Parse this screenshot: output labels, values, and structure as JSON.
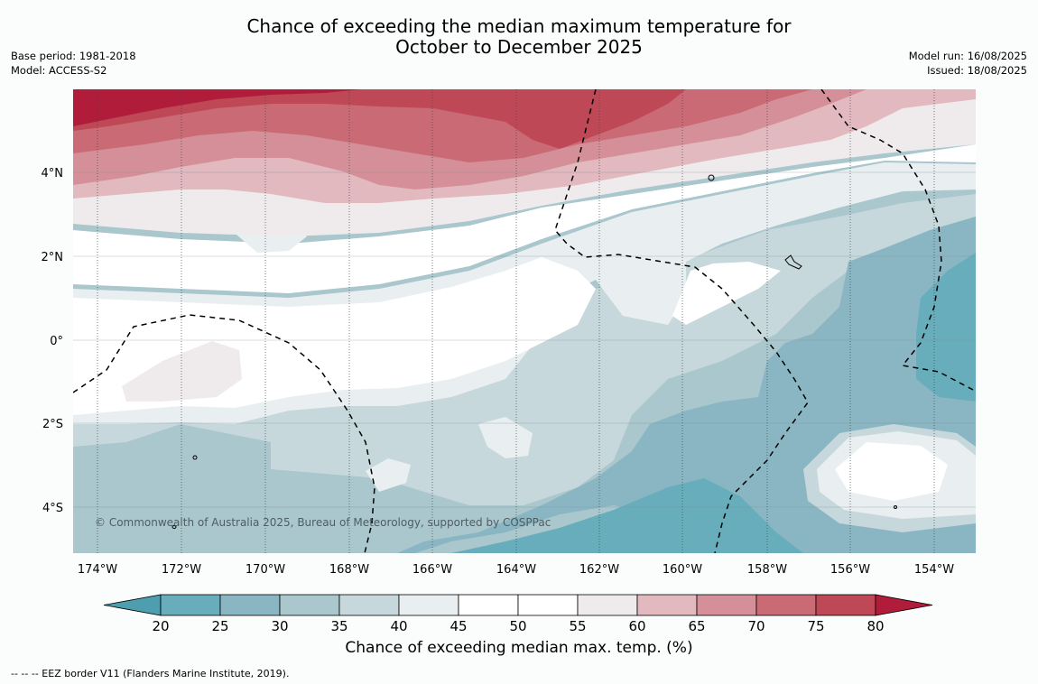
{
  "title": {
    "line1": "Chance of exceeding the median maximum temperature for",
    "line2": "October to December 2025"
  },
  "meta_left": {
    "base_period": "Base period: 1981-2018",
    "model": "Model: ACCESS-S2"
  },
  "meta_right": {
    "model_run": "Model run: 16/08/2025",
    "issued": "Issued: 18/08/2025"
  },
  "map": {
    "lat_labels": [
      "4°N",
      "2°N",
      "0°",
      "2°S",
      "4°S"
    ],
    "lon_labels": [
      "174°W",
      "172°W",
      "170°W",
      "168°W",
      "166°W",
      "164°W",
      "162°W",
      "160°W",
      "158°W",
      "156°W",
      "154°W"
    ],
    "copyright": "© Commonwealth of Australia 2025, Bureau of Meteorology, supported by COSPPac"
  },
  "colorbar": {
    "title": "Chance of exceeding median max. temp. (%)",
    "ticks": [
      "20",
      "25",
      "30",
      "35",
      "40",
      "45",
      "50",
      "55",
      "60",
      "65",
      "70",
      "75",
      "80"
    ],
    "colors": [
      "#67adbb",
      "#8ab6c3",
      "#a9c7cd",
      "#c6d8dc",
      "#e9eff1",
      "#ffffff",
      "#ffffff",
      "#efebec",
      "#e2b9bf",
      "#d48f98",
      "#c96a74",
      "#be4856"
    ],
    "under_color": "#4d9eaf",
    "over_color": "#b01c3a"
  },
  "footnote": "--  --  -- EEZ border V11 (Flanders Marine Institute, 2019)."
}
